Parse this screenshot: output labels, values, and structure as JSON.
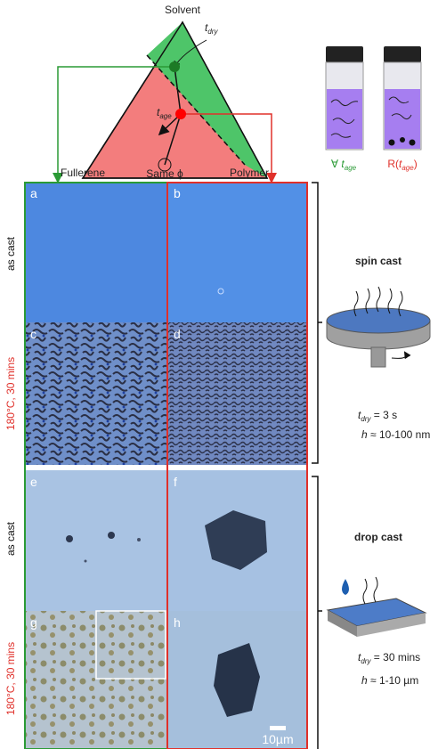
{
  "diagram": {
    "top": "Solvent",
    "left": "Fullerene",
    "right": "Polymer",
    "t_dry": {
      "base": "t",
      "sub": "dry"
    },
    "t_age": {
      "base": "t",
      "sub": "age"
    },
    "same_phi": "Same ϕ"
  },
  "vials": [
    {
      "prefix": "∀ ",
      "base": "t",
      "sub": "age"
    },
    {
      "prefix": "R(",
      "base": "t",
      "sub": "age",
      "suffix": ")"
    }
  ],
  "panels": [
    "a",
    "b",
    "c",
    "d",
    "e",
    "f",
    "g",
    "h"
  ],
  "rows": [
    "as cast",
    "180°C, 30 mins",
    "as cast",
    "180°C, 30 mins"
  ],
  "methods": [
    {
      "title": "spin cast",
      "t_dry": {
        "base": "t",
        "sub": "dry",
        "rest": " = 3 s"
      },
      "h": {
        "base": "h",
        "rest": " ≈ 10-100 nm"
      }
    },
    {
      "title": "drop cast",
      "t_dry": {
        "base": "t",
        "sub": "dry",
        "rest": " = 30 mins"
      },
      "h": {
        "base": "h",
        "rest": " ≈ 1-10 µm"
      }
    }
  ],
  "scale_bar": "10µm"
}
